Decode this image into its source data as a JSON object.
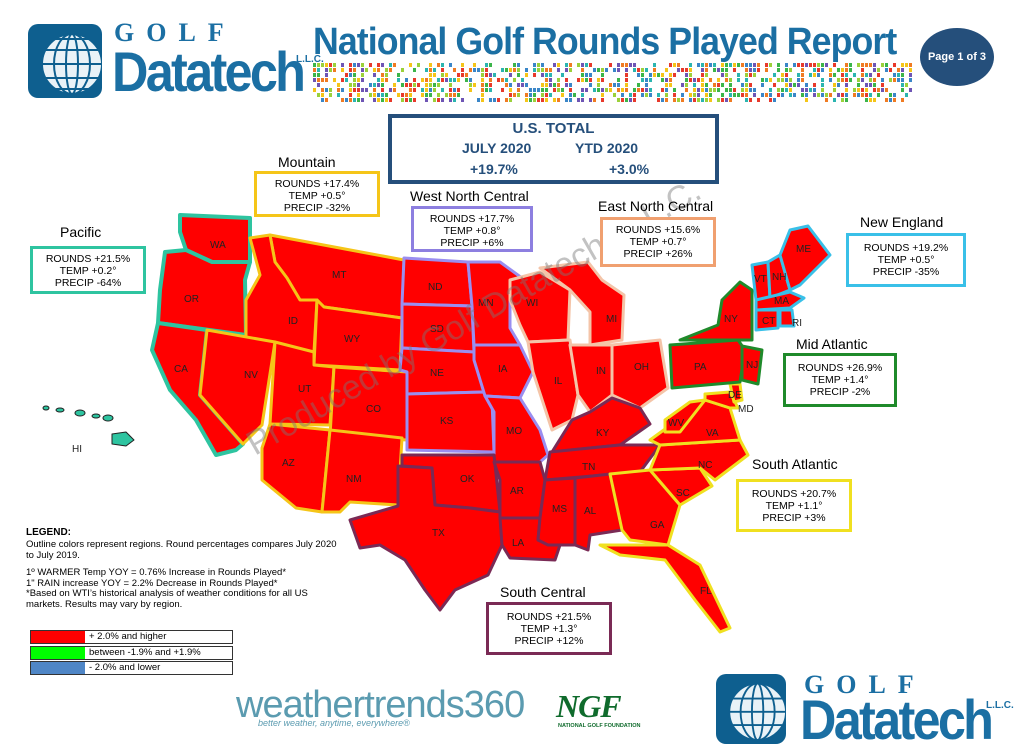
{
  "header": {
    "logo_golf": "GOLF",
    "logo_datatech": "Datatech",
    "logo_llc": "L.L.C.",
    "title": "National Golf Rounds Played Report",
    "page_badge": "Page 1 of 3"
  },
  "us_total": {
    "title": "U.S. TOTAL",
    "col1_label": "JULY 2020",
    "col1_value": "+19.7%",
    "col2_label": "YTD  2020",
    "col2_value": "+3.0%"
  },
  "regions": [
    {
      "name": "Mountain",
      "rounds": "ROUNDS  +17.4%",
      "temp": "TEMP +0.5°",
      "precip": "PRECIP -32%",
      "border_color": "#f5c518"
    },
    {
      "name": "West North Central",
      "rounds": "ROUNDS  +17.7%",
      "temp": "TEMP +0.8°",
      "precip": "PRECIP +6%",
      "border_color": "#8d7fe0"
    },
    {
      "name": "East North Central",
      "rounds": "ROUNDS  +15.6%",
      "temp": "TEMP +0.7°",
      "precip": "PRECIP +26%",
      "border_color": "#f0a070"
    },
    {
      "name": "New England",
      "rounds": "ROUNDS  +19.2%",
      "temp": "TEMP  +0.5°",
      "precip": "PRECIP -35%",
      "border_color": "#39c0e8"
    },
    {
      "name": "Pacific",
      "rounds": "ROUNDS  +21.5%",
      "temp": "TEMP +0.2°",
      "precip": "PRECIP -64%",
      "border_color": "#2ec4a0"
    },
    {
      "name": "Mid Atlantic",
      "rounds": "ROUNDS  +26.9%",
      "temp": "TEMP  +1.4°",
      "precip": "PRECIP -2%",
      "border_color": "#1f8a2a"
    },
    {
      "name": "South Atlantic",
      "rounds": "ROUNDS  +20.7%",
      "temp": "TEMP +1.1°",
      "precip": "PRECIP +3%",
      "border_color": "#f0e020"
    },
    {
      "name": "South Central",
      "rounds": "ROUNDS  +21.5%",
      "temp": "TEMP +1.3°",
      "precip": "PRECIP +12%",
      "border_color": "#7a2a55"
    }
  ],
  "states": [
    "WA",
    "OR",
    "CA",
    "MT",
    "ID",
    "WY",
    "NV",
    "UT",
    "CO",
    "AZ",
    "NM",
    "ND",
    "SD",
    "NE",
    "KS",
    "MN",
    "IA",
    "MO",
    "WI",
    "MI",
    "IL",
    "IN",
    "OH",
    "KY",
    "TN",
    "OK",
    "TX",
    "AR",
    "LA",
    "MS",
    "AL",
    "GA",
    "FL",
    "SC",
    "NC",
    "VA",
    "WV",
    "PA",
    "NY",
    "NJ",
    "DE",
    "MD",
    "VT",
    "NH",
    "ME",
    "MA",
    "CT",
    "RI",
    "HI"
  ],
  "legend": {
    "heading": "LEGEND:",
    "line1": "Outline colors represent regions. Round percentages compares July 2020 to July 2019.",
    "line2": "1º WARMER Temp YOY  = 0.76% Increase in Rounds Played*",
    "line3": "1\" RAIN increase YOY = 2.2% Decrease in Rounds Played*",
    "line4": "*Based on WTI’s historical analysis of weather conditions for all US markets. Results may vary by region.",
    "keys": [
      {
        "color": "#ff0000",
        "label": "+ 2.0% and higher"
      },
      {
        "color": "#00ff00",
        "label": "between -1.9% and +1.9%"
      },
      {
        "color": "#4f86c6",
        "label": "- 2.0% and lower"
      }
    ]
  },
  "watermark": "Produced by Golf Datatech, L.L.C.",
  "footer": {
    "wt_brand": "weathertrends360",
    "wt_tagline": "better weather, anytime, everywhere®",
    "ngf": "NGF",
    "ngf_sub": "NATIONAL GOLF FOUNDATION"
  }
}
